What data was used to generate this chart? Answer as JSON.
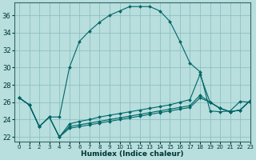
{
  "xlabel": "Humidex (Indice chaleur)",
  "bg_color": "#b8dede",
  "grid_color": "#88bbbb",
  "line_color": "#006666",
  "xlim": [
    -0.5,
    23
  ],
  "ylim": [
    21.5,
    37.5
  ],
  "yticks": [
    22,
    24,
    26,
    28,
    30,
    32,
    34,
    36
  ],
  "xticks": [
    0,
    1,
    2,
    3,
    4,
    5,
    6,
    7,
    8,
    9,
    10,
    11,
    12,
    13,
    14,
    15,
    16,
    17,
    18,
    19,
    20,
    21,
    22,
    23
  ],
  "series": [
    [
      26.5,
      25.7,
      23.2,
      24.3,
      24.3,
      30.0,
      33.0,
      34.2,
      35.2,
      36.0,
      36.5,
      37.0,
      37.0,
      37.0,
      36.5,
      35.3,
      33.0,
      30.5,
      29.5,
      25.0,
      24.9,
      25.0,
      26.1,
      26.0
    ],
    [
      26.5,
      25.7,
      23.2,
      24.3,
      22.0,
      23.5,
      23.8,
      24.0,
      24.3,
      24.5,
      24.7,
      24.9,
      25.1,
      25.3,
      25.5,
      25.7,
      26.0,
      26.3,
      29.2,
      26.0,
      25.3,
      24.9,
      25.1,
      26.2
    ],
    [
      26.5,
      25.7,
      23.2,
      24.3,
      22.0,
      23.2,
      23.4,
      23.6,
      23.8,
      24.0,
      24.2,
      24.4,
      24.6,
      24.8,
      25.0,
      25.2,
      25.4,
      25.6,
      26.8,
      26.0,
      25.3,
      24.9,
      25.1,
      26.2
    ],
    [
      26.5,
      25.7,
      23.2,
      24.3,
      22.0,
      23.0,
      23.2,
      23.4,
      23.6,
      23.8,
      24.0,
      24.2,
      24.4,
      24.6,
      24.8,
      25.0,
      25.2,
      25.4,
      26.5,
      26.0,
      25.3,
      24.9,
      25.1,
      26.2
    ]
  ]
}
